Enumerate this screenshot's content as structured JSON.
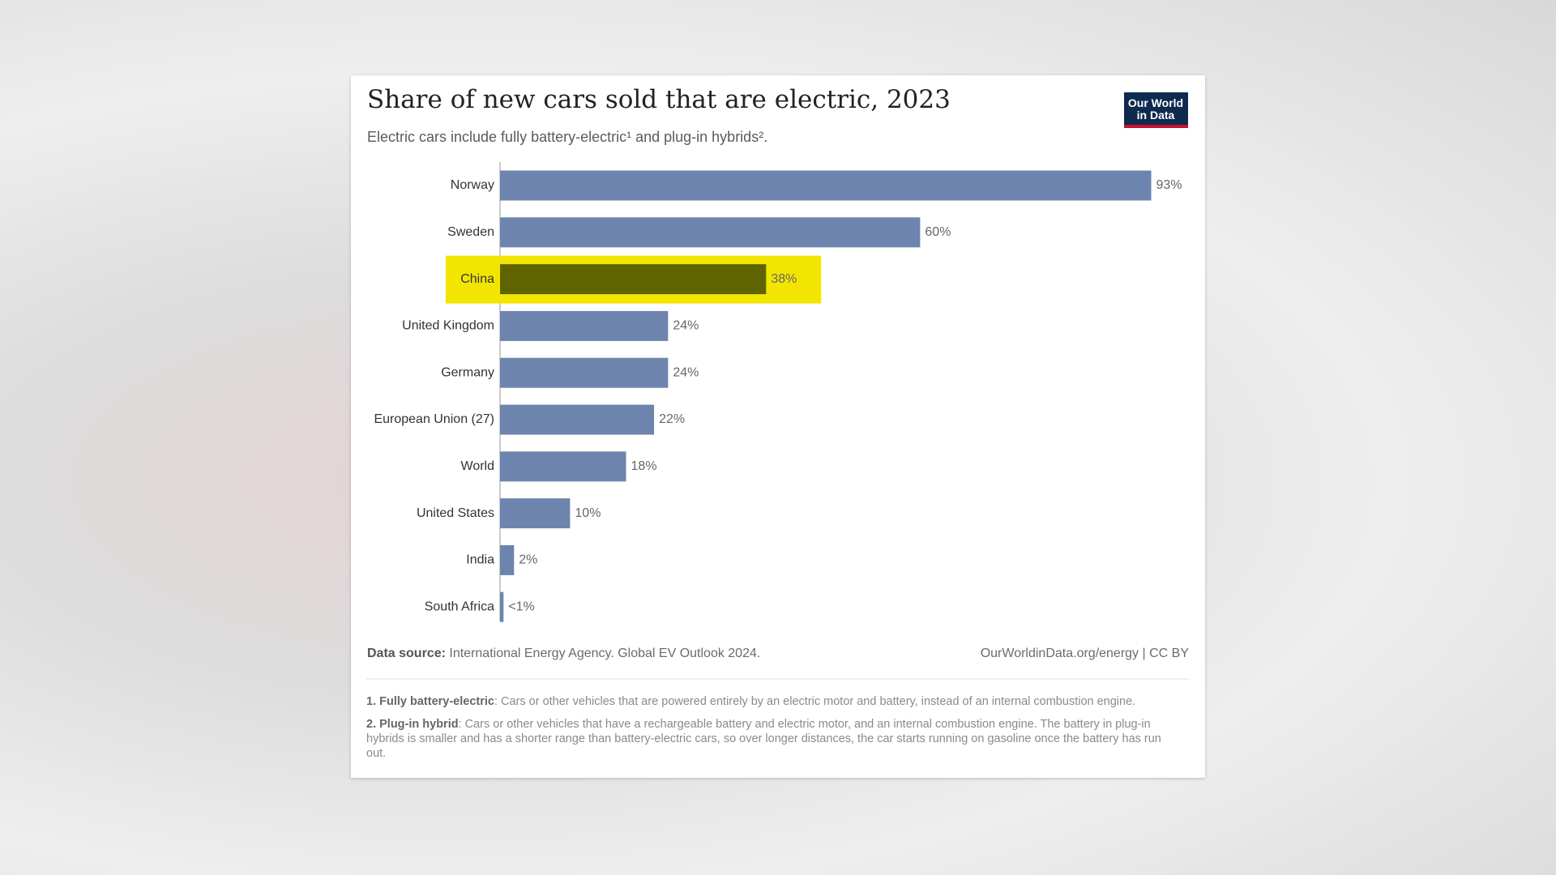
{
  "header": {
    "title": "Share of new cars sold that are electric, 2023",
    "subtitle": "Electric cars include fully battery-electric¹ and plug-in hybrids².",
    "logo": [
      "Our World",
      "in Data"
    ]
  },
  "chart_data": {
    "type": "bar",
    "orientation": "horizontal",
    "categories": [
      "Norway",
      "Sweden",
      "China",
      "United Kingdom",
      "Germany",
      "European Union (27)",
      "World",
      "United States",
      "India",
      "South Africa"
    ],
    "values": [
      93,
      60,
      38,
      24,
      24,
      22,
      18,
      10,
      2,
      0.5
    ],
    "value_labels": [
      "93%",
      "60%",
      "38%",
      "24%",
      "24%",
      "22%",
      "18%",
      "10%",
      "2%",
      "<1%"
    ],
    "color": "#6d84ae",
    "bar_colors": [
      null,
      null,
      "#5f6400",
      null,
      null,
      null,
      null,
      null,
      null,
      null
    ],
    "highlight_colors": [
      null,
      null,
      "#f2e600",
      null,
      null,
      null,
      null,
      null,
      null,
      null
    ],
    "xlim": [
      0,
      100
    ]
  },
  "footer": {
    "source_label": "Data source:",
    "source": "International Energy Agency. Global EV Outlook 2024.",
    "credit": "OurWorldinData.org/energy | CC BY"
  },
  "notes": [
    {
      "term": "1. Fully battery-electric",
      "text": ": Cars or other vehicles that are powered entirely by an electric motor and battery, instead of an internal combustion engine."
    },
    {
      "term": "2. Plug-in hybrid",
      "text": ": Cars or other vehicles that have a rechargeable battery and electric motor, and an internal combustion engine. The battery in plug-in hybrids is smaller and has a shorter range than battery-electric cars, so over longer distances, the car starts running on gasoline once the battery has run out."
    }
  ]
}
